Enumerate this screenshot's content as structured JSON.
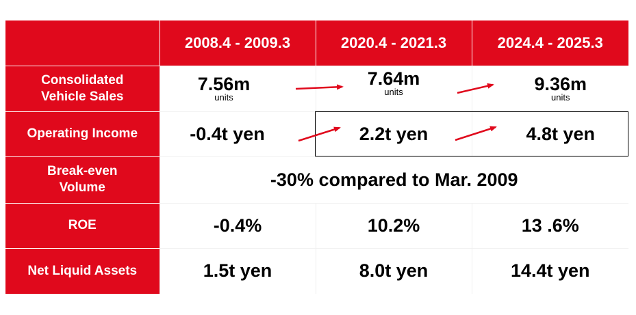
{
  "header": {
    "periods": [
      "2008.4 - 2009.3",
      "2020.4 - 2021.3",
      "2024.4 - 2025.3"
    ]
  },
  "rows": {
    "sales": {
      "label_line1": "Consolidated",
      "label_line2": "Vehicle Sales",
      "values": [
        "7.56m",
        "7.64m",
        "9.36m"
      ],
      "unit": "units"
    },
    "income": {
      "label": "Operating Income",
      "values": [
        "-0.4t yen",
        "2.2t yen",
        "4.8t yen"
      ]
    },
    "breakeven": {
      "label_line1": "Break-even",
      "label_line2": "Volume",
      "value": "-30% compared to Mar. 2009"
    },
    "roe": {
      "label": "ROE",
      "values": [
        "-0.4%",
        "10.2%",
        "13 .6%"
      ]
    },
    "liquid": {
      "label": "Net Liquid Assets",
      "values": [
        "1.5t yen",
        "8.0t yen",
        "14.4t yen"
      ]
    }
  },
  "colors": {
    "accent": "#e0091c",
    "arrow": "#e0091c",
    "text": "#000000",
    "background": "#ffffff"
  },
  "icons": [
    "trend-arrow-icon"
  ]
}
